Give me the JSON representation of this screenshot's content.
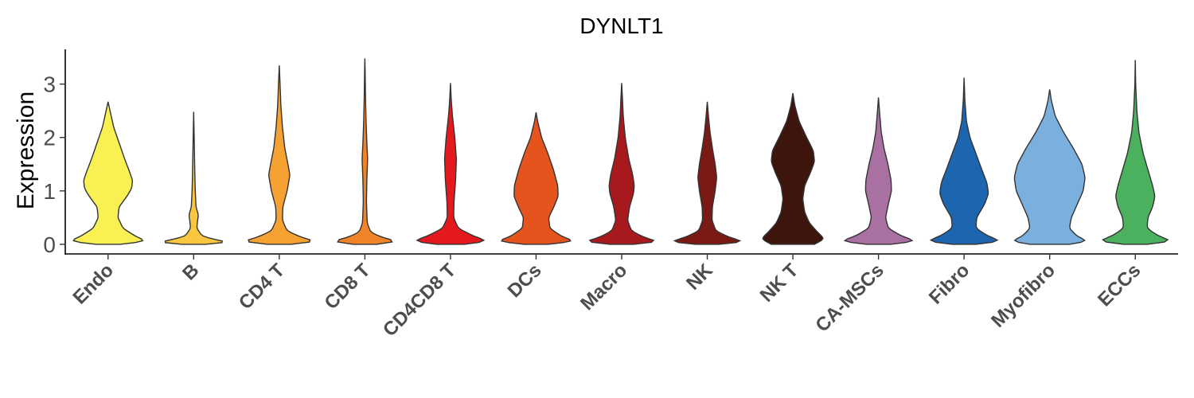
{
  "chart_data": {
    "type": "violin",
    "title": "DYNLT1",
    "ylabel": "Expression",
    "xlabel": "",
    "ylim": [
      -0.18,
      3.65
    ],
    "yticks": [
      0,
      1,
      2,
      3
    ],
    "grid": false,
    "legend": "none",
    "categories": [
      {
        "name": "Endo",
        "color": "#F9F154",
        "max": 2.67,
        "profile": [
          [
            0,
            0.3
          ],
          [
            0.05,
            1.0
          ],
          [
            0.15,
            0.7
          ],
          [
            0.3,
            0.38
          ],
          [
            0.5,
            0.25
          ],
          [
            0.7,
            0.28
          ],
          [
            0.9,
            0.48
          ],
          [
            1.05,
            0.6
          ],
          [
            1.2,
            0.62
          ],
          [
            1.35,
            0.55
          ],
          [
            1.6,
            0.42
          ],
          [
            1.9,
            0.28
          ],
          [
            2.2,
            0.14
          ],
          [
            2.5,
            0.05
          ],
          [
            2.67,
            0
          ]
        ]
      },
      {
        "name": "B",
        "color": "#F9C63F",
        "max": 2.48,
        "profile": [
          [
            0,
            0.3
          ],
          [
            0.02,
            1.0
          ],
          [
            0.08,
            0.6
          ],
          [
            0.15,
            0.22
          ],
          [
            0.3,
            0.08
          ],
          [
            0.45,
            0.1
          ],
          [
            0.55,
            0.12
          ],
          [
            0.7,
            0.06
          ],
          [
            1.0,
            0.04
          ],
          [
            1.3,
            0.03
          ],
          [
            1.7,
            0.02
          ],
          [
            2.1,
            0.01
          ],
          [
            2.48,
            0
          ]
        ]
      },
      {
        "name": "CD4 T",
        "color": "#F5A233",
        "max": 3.35,
        "profile": [
          [
            0,
            0.3
          ],
          [
            0.04,
            1.0
          ],
          [
            0.12,
            0.6
          ],
          [
            0.25,
            0.2
          ],
          [
            0.45,
            0.08
          ],
          [
            0.7,
            0.09
          ],
          [
            1.0,
            0.2
          ],
          [
            1.3,
            0.27
          ],
          [
            1.5,
            0.22
          ],
          [
            1.8,
            0.14
          ],
          [
            2.2,
            0.08
          ],
          [
            2.6,
            0.04
          ],
          [
            3.0,
            0.02
          ],
          [
            3.35,
            0
          ]
        ]
      },
      {
        "name": "CD8 T",
        "color": "#F08428",
        "max": 3.48,
        "profile": [
          [
            0,
            0.3
          ],
          [
            0.03,
            1.0
          ],
          [
            0.1,
            0.55
          ],
          [
            0.22,
            0.15
          ],
          [
            0.4,
            0.06
          ],
          [
            0.8,
            0.04
          ],
          [
            1.2,
            0.05
          ],
          [
            1.6,
            0.07
          ],
          [
            1.9,
            0.05
          ],
          [
            2.3,
            0.03
          ],
          [
            2.8,
            0.015
          ],
          [
            3.2,
            0.008
          ],
          [
            3.48,
            0
          ]
        ]
      },
      {
        "name": "CD4CD8 T",
        "color": "#E5191D",
        "max": 3.02,
        "profile": [
          [
            0,
            0.35
          ],
          [
            0.05,
            1.0
          ],
          [
            0.15,
            0.6
          ],
          [
            0.3,
            0.2
          ],
          [
            0.5,
            0.08
          ],
          [
            0.8,
            0.09
          ],
          [
            1.2,
            0.13
          ],
          [
            1.6,
            0.15
          ],
          [
            2.0,
            0.11
          ],
          [
            2.4,
            0.05
          ],
          [
            2.7,
            0.02
          ],
          [
            3.02,
            0
          ]
        ]
      },
      {
        "name": "DCs",
        "color": "#E6541E",
        "max": 2.47,
        "profile": [
          [
            0,
            0.3
          ],
          [
            0.05,
            1.0
          ],
          [
            0.15,
            0.65
          ],
          [
            0.3,
            0.35
          ],
          [
            0.5,
            0.32
          ],
          [
            0.7,
            0.45
          ],
          [
            0.9,
            0.56
          ],
          [
            1.1,
            0.55
          ],
          [
            1.4,
            0.44
          ],
          [
            1.7,
            0.3
          ],
          [
            2.0,
            0.14
          ],
          [
            2.3,
            0.04
          ],
          [
            2.47,
            0
          ]
        ]
      },
      {
        "name": "Macro",
        "color": "#A8191D",
        "max": 3.02,
        "profile": [
          [
            0,
            0.3
          ],
          [
            0.04,
            1.0
          ],
          [
            0.12,
            0.6
          ],
          [
            0.25,
            0.25
          ],
          [
            0.45,
            0.15
          ],
          [
            0.7,
            0.2
          ],
          [
            0.95,
            0.3
          ],
          [
            1.1,
            0.32
          ],
          [
            1.3,
            0.28
          ],
          [
            1.6,
            0.18
          ],
          [
            2.0,
            0.09
          ],
          [
            2.4,
            0.04
          ],
          [
            2.8,
            0.015
          ],
          [
            3.02,
            0
          ]
        ]
      },
      {
        "name": "NK",
        "color": "#7B1A14",
        "max": 2.67,
        "profile": [
          [
            0,
            0.3
          ],
          [
            0.04,
            1.0
          ],
          [
            0.12,
            0.6
          ],
          [
            0.25,
            0.22
          ],
          [
            0.45,
            0.12
          ],
          [
            0.7,
            0.13
          ],
          [
            1.0,
            0.2
          ],
          [
            1.25,
            0.24
          ],
          [
            1.5,
            0.2
          ],
          [
            1.8,
            0.13
          ],
          [
            2.1,
            0.07
          ],
          [
            2.4,
            0.03
          ],
          [
            2.67,
            0
          ]
        ]
      },
      {
        "name": "NK T",
        "color": "#3E150C",
        "max": 2.83,
        "profile": [
          [
            0,
            0.55
          ],
          [
            0.1,
            0.8
          ],
          [
            0.25,
            0.6
          ],
          [
            0.4,
            0.42
          ],
          [
            0.6,
            0.3
          ],
          [
            0.85,
            0.25
          ],
          [
            1.1,
            0.3
          ],
          [
            1.35,
            0.45
          ],
          [
            1.55,
            0.55
          ],
          [
            1.75,
            0.52
          ],
          [
            2.0,
            0.35
          ],
          [
            2.3,
            0.16
          ],
          [
            2.6,
            0.05
          ],
          [
            2.83,
            0
          ]
        ]
      },
      {
        "name": "CA-MSCs",
        "color": "#A970A2",
        "max": 2.75,
        "profile": [
          [
            0,
            0.3
          ],
          [
            0.05,
            1.0
          ],
          [
            0.15,
            0.6
          ],
          [
            0.3,
            0.25
          ],
          [
            0.5,
            0.18
          ],
          [
            0.75,
            0.25
          ],
          [
            1.0,
            0.33
          ],
          [
            1.2,
            0.32
          ],
          [
            1.5,
            0.24
          ],
          [
            1.8,
            0.14
          ],
          [
            2.1,
            0.07
          ],
          [
            2.45,
            0.03
          ],
          [
            2.75,
            0
          ]
        ]
      },
      {
        "name": "Fibro",
        "color": "#1D66AF",
        "max": 3.12,
        "profile": [
          [
            0,
            0.3
          ],
          [
            0.05,
            1.0
          ],
          [
            0.15,
            0.62
          ],
          [
            0.3,
            0.3
          ],
          [
            0.5,
            0.32
          ],
          [
            0.75,
            0.52
          ],
          [
            0.95,
            0.62
          ],
          [
            1.15,
            0.58
          ],
          [
            1.4,
            0.45
          ],
          [
            1.7,
            0.3
          ],
          [
            2.0,
            0.15
          ],
          [
            2.3,
            0.06
          ],
          [
            2.7,
            0.02
          ],
          [
            3.12,
            0
          ]
        ]
      },
      {
        "name": "Myofibro",
        "color": "#7BB0DE",
        "max": 2.9,
        "profile": [
          [
            0,
            0.5
          ],
          [
            0.05,
            1.0
          ],
          [
            0.15,
            0.7
          ],
          [
            0.3,
            0.5
          ],
          [
            0.5,
            0.55
          ],
          [
            0.75,
            0.7
          ],
          [
            1.0,
            0.85
          ],
          [
            1.25,
            0.9
          ],
          [
            1.5,
            0.82
          ],
          [
            1.8,
            0.6
          ],
          [
            2.1,
            0.35
          ],
          [
            2.4,
            0.14
          ],
          [
            2.7,
            0.04
          ],
          [
            2.9,
            0
          ]
        ]
      },
      {
        "name": "ECCs",
        "color": "#4CB15E",
        "max": 3.45,
        "profile": [
          [
            0,
            0.3
          ],
          [
            0.05,
            1.0
          ],
          [
            0.15,
            0.6
          ],
          [
            0.3,
            0.3
          ],
          [
            0.5,
            0.32
          ],
          [
            0.7,
            0.44
          ],
          [
            0.9,
            0.5
          ],
          [
            1.1,
            0.44
          ],
          [
            1.4,
            0.32
          ],
          [
            1.7,
            0.2
          ],
          [
            2.1,
            0.09
          ],
          [
            2.5,
            0.04
          ],
          [
            3.0,
            0.01
          ],
          [
            3.45,
            0
          ]
        ]
      }
    ]
  }
}
